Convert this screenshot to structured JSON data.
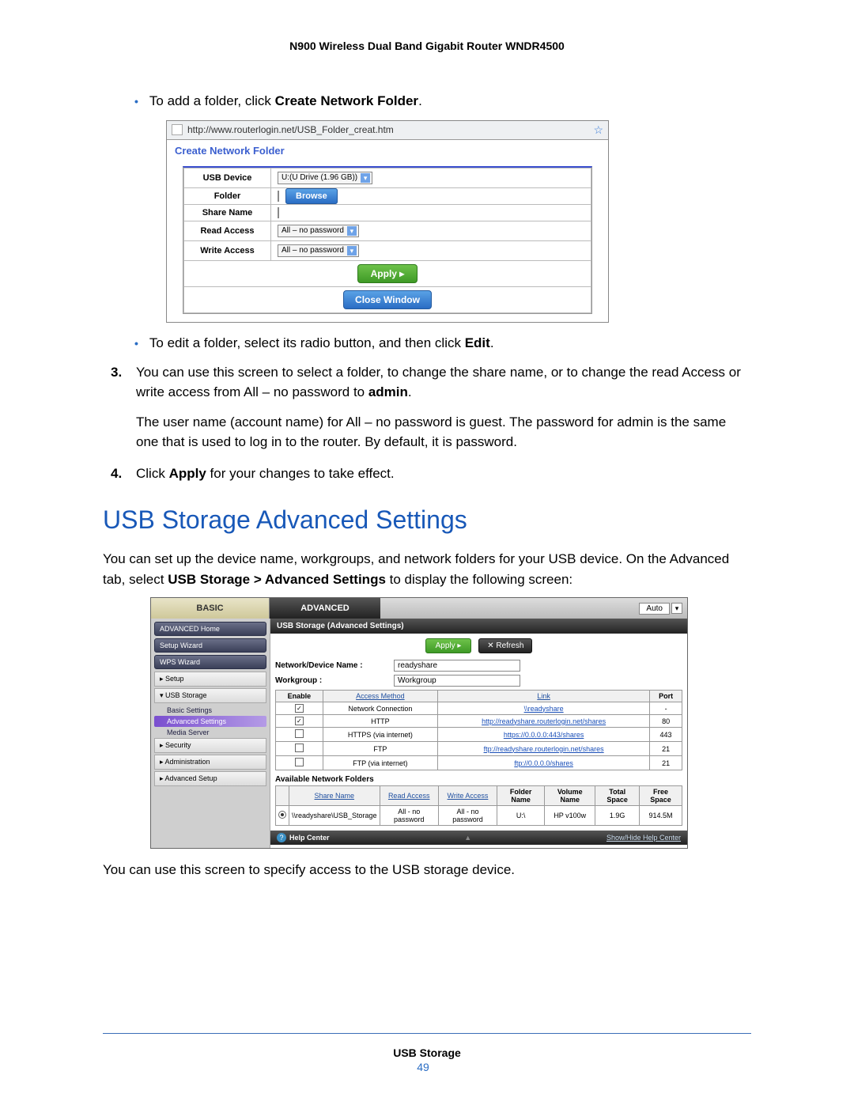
{
  "header": {
    "title": "N900 Wireless Dual Band Gigabit Router WNDR4500"
  },
  "bullets": {
    "b1_pre": "To add a folder, click ",
    "b1_bold": "Create Network Folder",
    "b1_post": ".",
    "b2_pre": "To edit a folder, select its radio button, and then click ",
    "b2_bold": "Edit",
    "b2_post": "."
  },
  "step3": {
    "num": "3.",
    "text_pre": "You can use this screen to select a folder, to change the share name, or to change the read Access or write access from All – no password to ",
    "text_bold": "admin",
    "text_post": ".",
    "para2": "The user name (account name) for All – no password is guest. The password for admin is the same one that is used to log in to the router. By default, it is password."
  },
  "step4": {
    "num": "4.",
    "pre": "Click ",
    "bold": "Apply",
    "post": " for your changes to take effect."
  },
  "section": {
    "title": "USB Storage Advanced Settings"
  },
  "intro": {
    "pre": "You can set up the device name, workgroups, and network folders for your USB device. On the Advanced tab, select ",
    "bold": "USB Storage > Advanced Settings",
    "post": " to display the following screen:"
  },
  "outro": "You can use this screen to specify access to the USB storage device.",
  "footer": {
    "label": "USB Storage",
    "page": "49"
  },
  "shot1": {
    "url": "http://www.routerlogin.net/USB_Folder_creat.htm",
    "title": "Create Network Folder",
    "labels": {
      "usb_device": "USB Device",
      "folder": "Folder",
      "share_name": "Share Name",
      "read_access": "Read Access",
      "write_access": "Write Access"
    },
    "values": {
      "usb_device": "U:(U Drive (1.96 GB))",
      "read_access": "All – no password",
      "write_access": "All – no password"
    },
    "buttons": {
      "browse": "Browse",
      "apply": "Apply   ▸",
      "close": "Close Window"
    }
  },
  "shot2": {
    "tabs": {
      "basic": "BASIC",
      "advanced": "ADVANCED",
      "auto": "Auto"
    },
    "sidebar": {
      "btns": [
        "ADVANCED Home",
        "Setup Wizard",
        "WPS Wizard"
      ],
      "items": [
        "▸ Setup",
        "▾ USB Storage"
      ],
      "subs": [
        "Basic Settings",
        "Advanced Settings",
        "Media Server"
      ],
      "items2": [
        "▸ Security",
        "▸ Administration",
        "▸ Advanced Setup"
      ]
    },
    "panel_title": "USB Storage (Advanced Settings)",
    "buttons": {
      "apply": "Apply ▸",
      "refresh": "✕ Refresh"
    },
    "fields": {
      "device_name_label": "Network/Device Name :",
      "device_name": "readyshare",
      "workgroup_label": "Workgroup :",
      "workgroup": "Workgroup"
    },
    "access_table": {
      "headers": [
        "Enable",
        "Access Method",
        "Link",
        "Port"
      ],
      "rows": [
        {
          "enabled": true,
          "method": "Network Connection",
          "link": "\\\\readyshare",
          "port": "-"
        },
        {
          "enabled": true,
          "method": "HTTP",
          "link": "http://readyshare.routerlogin.net/shares",
          "port": "80"
        },
        {
          "enabled": false,
          "method": "HTTPS (via internet)",
          "link": "https://0.0.0.0:443/shares",
          "port": "443"
        },
        {
          "enabled": false,
          "method": "FTP",
          "link": "ftp://readyshare.routerlogin.net/shares",
          "port": "21"
        },
        {
          "enabled": false,
          "method": "FTP (via internet)",
          "link": "ftp://0.0.0.0/shares",
          "port": "21"
        }
      ]
    },
    "folders_label": "Available Network Folders",
    "folders_table": {
      "headers": [
        "",
        "Share Name",
        "Read Access",
        "Write Access",
        "Folder Name",
        "Volume Name",
        "Total Space",
        "Free Space"
      ],
      "row": {
        "share": "\\\\readyshare\\USB_Storage",
        "read": "All - no password",
        "write": "All - no password",
        "folder": "U:\\",
        "volume": "HP v100w",
        "total": "1.9G",
        "free": "914.5M"
      }
    },
    "help": {
      "left": "Help Center",
      "right": "Show/Hide Help Center"
    }
  }
}
